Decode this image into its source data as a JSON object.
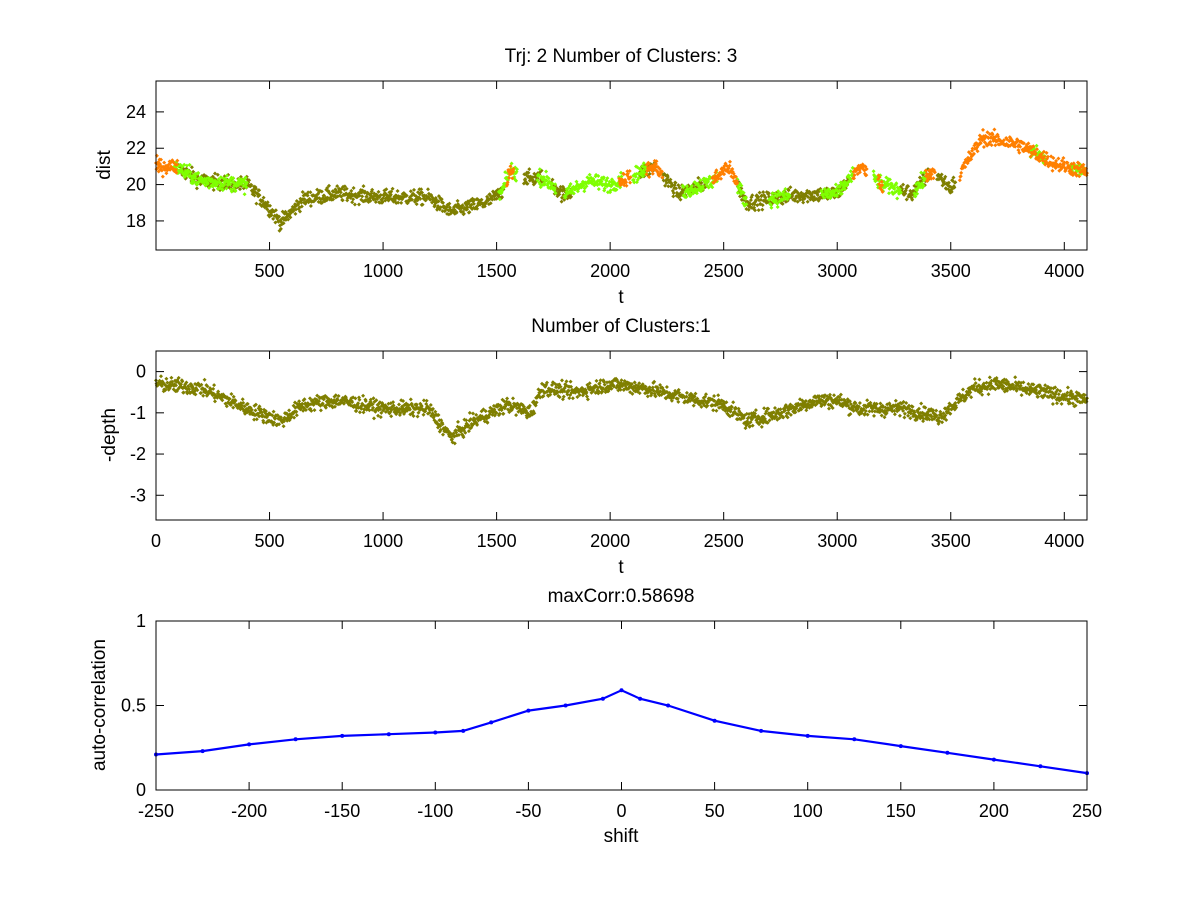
{
  "chart_data": [
    {
      "type": "scatter",
      "title": "Trj: 2 Number of Clusters: 3",
      "xlabel": "t",
      "ylabel": "dist",
      "xlim": [
        0,
        4100
      ],
      "ylim": [
        16.4,
        25.7
      ],
      "xticks": [
        500,
        1000,
        1500,
        2000,
        2500,
        3000,
        3500,
        4000
      ],
      "yticks": [
        18,
        20,
        22,
        24
      ],
      "tick_labels_x": [
        "500",
        "1000",
        "1500",
        "2000",
        "2500",
        "3000",
        "3500",
        "4000"
      ],
      "tick_labels_y": [
        "18",
        "20",
        "22",
        "24"
      ],
      "series": [
        {
          "name": "cluster-olive",
          "color": "#7f7f00",
          "segments": [
            [
              100,
              350
            ],
            [
              360,
              1530
            ],
            [
              1620,
              1700
            ],
            [
              1740,
              1830
            ],
            [
              2130,
              2200
            ],
            [
              2230,
              2420
            ],
            [
              2560,
              3050
            ],
            [
              3280,
              3410
            ],
            [
              3440,
              3520
            ]
          ]
        },
        {
          "name": "cluster-green",
          "color": "#7fff00",
          "segments": [
            [
              80,
              400
            ],
            [
              1510,
              1590
            ],
            [
              1680,
              1760
            ],
            [
              1800,
              2050
            ],
            [
              2100,
              2160
            ],
            [
              2320,
              2470
            ],
            [
              2560,
              2600
            ],
            [
              2700,
              2790
            ],
            [
              2930,
              3070
            ],
            [
              3160,
              3280
            ],
            [
              3340,
              3400
            ],
            [
              3850,
              3920
            ],
            [
              4030,
              4090
            ]
          ]
        },
        {
          "name": "cluster-orange",
          "color": "#ff7f00",
          "segments": [
            [
              0,
              95
            ],
            [
              1545,
              1575
            ],
            [
              2040,
              2090
            ],
            [
              2160,
              2230
            ],
            [
              2450,
              2560
            ],
            [
              3070,
              3130
            ],
            [
              3180,
              3200
            ],
            [
              3390,
              3430
            ],
            [
              3540,
              4100
            ]
          ]
        }
      ],
      "trend": [
        [
          0,
          21.0
        ],
        [
          80,
          21.0
        ],
        [
          200,
          20.2
        ],
        [
          400,
          20.0
        ],
        [
          480,
          19.0
        ],
        [
          550,
          17.9
        ],
        [
          650,
          19.2
        ],
        [
          800,
          19.5
        ],
        [
          1000,
          19.3
        ],
        [
          1200,
          19.3
        ],
        [
          1300,
          18.5
        ],
        [
          1450,
          19.0
        ],
        [
          1520,
          19.5
        ],
        [
          1560,
          20.8
        ],
        [
          1650,
          20.3
        ],
        [
          1700,
          20.4
        ],
        [
          1800,
          19.4
        ],
        [
          1900,
          20.2
        ],
        [
          2000,
          20.0
        ],
        [
          2100,
          20.5
        ],
        [
          2200,
          21.0
        ],
        [
          2300,
          19.5
        ],
        [
          2450,
          20.2
        ],
        [
          2520,
          21.0
        ],
        [
          2600,
          19.0
        ],
        [
          2800,
          19.4
        ],
        [
          3000,
          19.5
        ],
        [
          3100,
          21.0
        ],
        [
          3200,
          20.0
        ],
        [
          3330,
          19.5
        ],
        [
          3420,
          20.8
        ],
        [
          3500,
          19.8
        ],
        [
          3560,
          21.0
        ],
        [
          3640,
          22.6
        ],
        [
          3800,
          22.2
        ],
        [
          3950,
          21.2
        ],
        [
          4100,
          20.7
        ]
      ]
    },
    {
      "type": "scatter",
      "title": "Number of Clusters:1",
      "xlabel": "t",
      "ylabel": "-depth",
      "xlim": [
        0,
        4100
      ],
      "ylim": [
        -3.6,
        0.5
      ],
      "xticks": [
        0,
        500,
        1000,
        1500,
        2000,
        2500,
        3000,
        3500,
        4000
      ],
      "yticks": [
        -3,
        -2,
        -1,
        0
      ],
      "tick_labels_x": [
        "0",
        "500",
        "1000",
        "1500",
        "2000",
        "2500",
        "3000",
        "3500",
        "4000"
      ],
      "tick_labels_y": [
        "-3",
        "-2",
        "-1",
        "0"
      ],
      "series": [
        {
          "name": "cluster-olive",
          "color": "#7f7f00",
          "segments": [
            [
              0,
              4100
            ]
          ]
        }
      ],
      "trend": [
        [
          0,
          -0.3
        ],
        [
          200,
          -0.4
        ],
        [
          400,
          -0.9
        ],
        [
          550,
          -1.2
        ],
        [
          650,
          -0.8
        ],
        [
          800,
          -0.7
        ],
        [
          1000,
          -0.9
        ],
        [
          1200,
          -0.9
        ],
        [
          1300,
          -1.6
        ],
        [
          1400,
          -1.2
        ],
        [
          1550,
          -0.8
        ],
        [
          1650,
          -1.0
        ],
        [
          1700,
          -0.4
        ],
        [
          1850,
          -0.5
        ],
        [
          2000,
          -0.3
        ],
        [
          2150,
          -0.4
        ],
        [
          2300,
          -0.6
        ],
        [
          2500,
          -0.8
        ],
        [
          2600,
          -1.2
        ],
        [
          2750,
          -1.0
        ],
        [
          2900,
          -0.7
        ],
        [
          3000,
          -0.7
        ],
        [
          3100,
          -0.9
        ],
        [
          3300,
          -0.9
        ],
        [
          3450,
          -1.1
        ],
        [
          3600,
          -0.4
        ],
        [
          3700,
          -0.3
        ],
        [
          3900,
          -0.5
        ],
        [
          4100,
          -0.7
        ]
      ]
    },
    {
      "type": "line",
      "title": "maxCorr:0.58698",
      "xlabel": "shift",
      "ylabel": "auto-correlation",
      "xlim": [
        -250,
        250
      ],
      "ylim": [
        0,
        1
      ],
      "xticks": [
        -250,
        -200,
        -150,
        -100,
        -50,
        0,
        50,
        100,
        150,
        200,
        250
      ],
      "yticks": [
        0,
        0.5,
        1
      ],
      "tick_labels_x": [
        "-250",
        "-200",
        "-150",
        "-100",
        "-50",
        "0",
        "50",
        "100",
        "150",
        "200",
        "250"
      ],
      "tick_labels_y": [
        "0",
        "0.5",
        "1"
      ],
      "series": [
        {
          "name": "auto-correlation",
          "color": "#0000ff",
          "x": [
            -250,
            -225,
            -200,
            -175,
            -150,
            -125,
            -100,
            -85,
            -70,
            -50,
            -30,
            -10,
            0,
            10,
            25,
            50,
            75,
            100,
            125,
            150,
            175,
            200,
            225,
            250
          ],
          "y": [
            0.21,
            0.23,
            0.27,
            0.3,
            0.32,
            0.33,
            0.34,
            0.35,
            0.4,
            0.47,
            0.5,
            0.54,
            0.59,
            0.54,
            0.5,
            0.41,
            0.35,
            0.32,
            0.3,
            0.26,
            0.22,
            0.18,
            0.14,
            0.1
          ]
        }
      ]
    }
  ]
}
